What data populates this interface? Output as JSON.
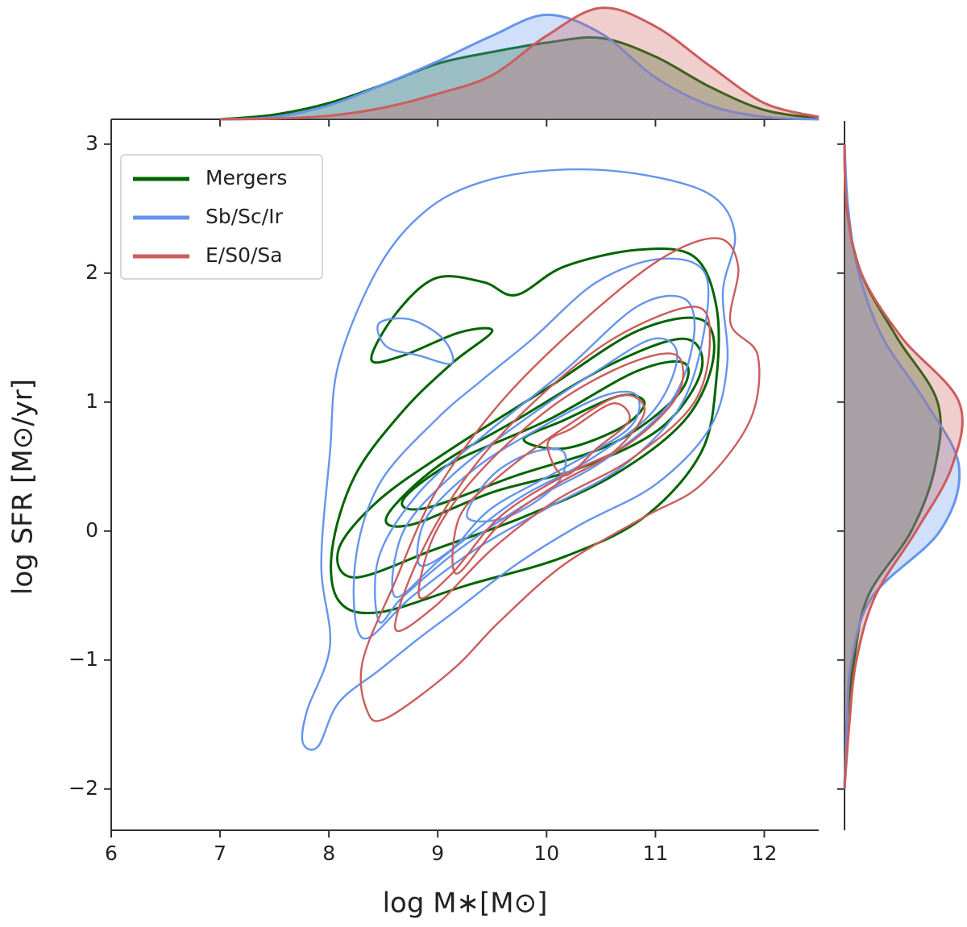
{
  "chart_data": [
    {
      "type": "contour",
      "xlabel": "log M∗[M⊙]",
      "ylabel": "log SFR [M⊙/yr]",
      "xlim": [
        6,
        12.5
      ],
      "ylim": [
        -2.32,
        3.18
      ],
      "xticks": [
        6,
        7,
        8,
        9,
        10,
        11,
        12
      ],
      "yticks": [
        {
          "value": -2,
          "label": "−2"
        },
        {
          "value": -1,
          "label": "−1"
        },
        0,
        1,
        2,
        3
      ],
      "legend": "upper left",
      "series": [
        {
          "name": "Mergers",
          "color": "#006400",
          "levels": [
            {
              "x": [
                8.39,
                8.61,
                8.98,
                9.42,
                9.72,
                10.16,
                10.83,
                11.35,
                11.56,
                11.56,
                11.42,
                10.9,
                10.16,
                9.27,
                8.46,
                8.09,
                8.03,
                8.24,
                8.68,
                9.13,
                9.5,
                9.2,
                8.68
              ],
              "y": [
                1.33,
                1.68,
                1.96,
                1.93,
                1.83,
                2.05,
                2.18,
                2.13,
                1.74,
                1.18,
                0.61,
                0.11,
                -0.2,
                -0.42,
                -0.63,
                -0.54,
                -0.14,
                0.43,
                0.93,
                1.3,
                1.55,
                1.54,
                1.36
              ]
            },
            {
              "x": [
                8.09,
                8.46,
                9.13,
                10.01,
                10.83,
                11.42,
                11.53,
                11.27,
                10.61,
                9.79,
                8.98,
                8.24
              ],
              "y": [
                -0.14,
                0.24,
                0.64,
                1.11,
                1.55,
                1.64,
                1.33,
                0.86,
                0.43,
                0.11,
                -0.14,
                -0.36
              ]
            },
            {
              "x": [
                8.53,
                8.98,
                9.72,
                10.61,
                11.27,
                11.42,
                11.05,
                10.31,
                9.5,
                8.76
              ],
              "y": [
                0.11,
                0.49,
                0.86,
                1.3,
                1.49,
                1.24,
                0.8,
                0.49,
                0.3,
                0.05
              ]
            },
            {
              "x": [
                8.68,
                9.13,
                10.01,
                10.83,
                11.27,
                11.2,
                10.61,
                9.72,
                8.9
              ],
              "y": [
                0.24,
                0.53,
                0.86,
                1.24,
                1.3,
                1.05,
                0.68,
                0.43,
                0.18
              ]
            },
            {
              "x": [
                9.79,
                10.16,
                10.68,
                10.9,
                10.68,
                10.16
              ],
              "y": [
                0.71,
                0.86,
                1.05,
                0.99,
                0.8,
                0.64
              ]
            }
          ]
        },
        {
          "name": "Sb/Sc/Ir",
          "color": "#6495ed",
          "levels": [
            {
              "x": [
                7.76,
                7.8,
                8.01,
                7.93,
                8.01,
                8.09,
                8.46,
                8.9,
                9.42,
                10.09,
                10.83,
                11.5,
                11.73,
                11.62,
                11.66,
                11.5,
                11.0,
                10.31,
                9.72,
                9.13,
                8.83,
                8.46,
                8.09,
                7.9
              ],
              "y": [
                -1.64,
                -1.39,
                -0.89,
                -0.26,
                0.61,
                1.3,
                2.05,
                2.49,
                2.71,
                2.8,
                2.77,
                2.61,
                2.3,
                1.86,
                1.3,
                0.8,
                0.36,
                0.05,
                -0.26,
                -0.64,
                -0.83,
                -1.08,
                -1.33,
                -1.67
              ]
            },
            {
              "x": [
                8.31,
                8.24,
                8.46,
                8.98,
                9.42,
                9.87,
                10.46,
                11.05,
                11.46,
                11.42,
                11.2,
                10.68,
                10.01,
                9.35,
                8.76
              ],
              "y": [
                -0.83,
                -0.26,
                0.36,
                0.86,
                1.18,
                1.49,
                1.93,
                2.11,
                1.99,
                1.43,
                0.93,
                0.49,
                0.18,
                -0.14,
                -0.51
              ]
            },
            {
              "x": [
                8.46,
                8.46,
                8.83,
                9.42,
                10.16,
                10.83,
                11.27,
                11.35,
                11.13,
                10.53,
                9.87,
                9.2,
                8.68
              ],
              "y": [
                -0.7,
                -0.2,
                0.3,
                0.74,
                1.24,
                1.74,
                1.8,
                1.49,
                0.99,
                0.55,
                0.24,
                -0.14,
                -0.51
              ]
            },
            {
              "x": [
                8.61,
                8.68,
                9.13,
                9.79,
                10.46,
                10.98,
                11.2,
                10.98,
                10.39,
                9.72,
                9.05
              ],
              "y": [
                -0.51,
                -0.01,
                0.43,
                0.86,
                1.24,
                1.49,
                1.36,
                0.93,
                0.55,
                0.24,
                -0.2
              ]
            },
            {
              "x": [
                8.83,
                8.9,
                9.35,
                9.94,
                10.53,
                10.83,
                10.76,
                10.16,
                9.5,
                9.13
              ],
              "y": [
                -0.26,
                0.11,
                0.49,
                0.8,
                1.05,
                1.05,
                0.8,
                0.49,
                0.18,
                -0.14
              ]
            },
            {
              "x": [
                9.27,
                9.5,
                9.87,
                10.16,
                10.09,
                9.64
              ],
              "y": [
                0.11,
                0.43,
                0.61,
                0.61,
                0.36,
                0.11
              ]
            },
            {
              "x": [
                8.46,
                8.75,
                9.05,
                9.13,
                8.83,
                8.53
              ],
              "y": [
                1.61,
                1.64,
                1.49,
                1.3,
                1.36,
                1.43
              ]
            }
          ]
        },
        {
          "name": "E/S0/Sa",
          "color": "#cd5c5c",
          "levels": [
            {
              "x": [
                8.35,
                8.31,
                8.61,
                8.98,
                9.57,
                10.31,
                11.05,
                11.57,
                11.76,
                11.69,
                11.94,
                11.87,
                11.42,
                10.9,
                10.16,
                9.57,
                9.13,
                8.53
              ],
              "y": [
                -1.39,
                -1.01,
                -0.39,
                0.3,
                0.99,
                1.61,
                2.11,
                2.27,
                2.05,
                1.61,
                1.36,
                0.86,
                0.36,
                0.11,
                -0.26,
                -0.7,
                -1.08,
                -1.45
              ]
            },
            {
              "x": [
                8.61,
                8.83,
                9.27,
                9.87,
                10.61,
                11.35,
                11.5,
                11.35,
                10.76,
                10.09,
                9.5,
                8.98
              ],
              "y": [
                -0.76,
                -0.2,
                0.43,
                0.99,
                1.49,
                1.74,
                1.49,
                0.99,
                0.55,
                0.24,
                -0.14,
                -0.58
              ]
            },
            {
              "x": [
                8.83,
                8.98,
                9.42,
                10.09,
                10.76,
                11.2,
                11.2,
                10.76,
                10.16,
                9.57,
                9.13
              ],
              "y": [
                -0.51,
                -0.01,
                0.49,
                0.99,
                1.3,
                1.36,
                1.05,
                0.68,
                0.43,
                0.11,
                -0.33
              ]
            },
            {
              "x": [
                9.17,
                9.2,
                9.57,
                10.16,
                10.68,
                10.9,
                10.61,
                10.09,
                9.57
              ],
              "y": [
                -0.33,
                0.11,
                0.43,
                0.8,
                1.05,
                0.93,
                0.61,
                0.36,
                0.05
              ]
            },
            {
              "x": [
                10.01,
                10.24,
                10.61,
                10.76,
                10.46,
                10.16
              ],
              "y": [
                0.68,
                0.8,
                0.99,
                0.86,
                0.64,
                0.43
              ]
            }
          ]
        }
      ]
    },
    {
      "type": "density",
      "orientation": "vertical",
      "ylim": [
        0,
        0.5
      ],
      "x": [
        7,
        7.5,
        8,
        8.5,
        9,
        9.5,
        10,
        10.5,
        11,
        11.5,
        12,
        12.5
      ],
      "series": [
        {
          "color": "#006400",
          "values": [
            0,
            0.02,
            0.07,
            0.15,
            0.24,
            0.29,
            0.33,
            0.35,
            0.27,
            0.14,
            0.04,
            0.005
          ]
        },
        {
          "color": "#6495ed",
          "values": [
            0,
            0.01,
            0.06,
            0.15,
            0.25,
            0.36,
            0.45,
            0.37,
            0.18,
            0.06,
            0.01,
            0
          ]
        },
        {
          "color": "#cd5c5c",
          "values": [
            0,
            0.003,
            0.015,
            0.05,
            0.11,
            0.19,
            0.36,
            0.48,
            0.4,
            0.23,
            0.07,
            0.01
          ]
        }
      ]
    },
    {
      "type": "density",
      "orientation": "horizontal",
      "xlim": [
        0,
        0.5
      ],
      "x": [
        -2,
        -1.5,
        -1,
        -0.5,
        0,
        0.5,
        1,
        1.5,
        2,
        2.5,
        3
      ],
      "series": [
        {
          "color": "#006400",
          "values": [
            0,
            0.01,
            0.04,
            0.1,
            0.28,
            0.38,
            0.39,
            0.22,
            0.07,
            0.01,
            0
          ]
        },
        {
          "color": "#6495ed",
          "values": [
            0,
            0.01,
            0.03,
            0.12,
            0.4,
            0.48,
            0.34,
            0.16,
            0.06,
            0.015,
            0
          ]
        },
        {
          "color": "#cd5c5c",
          "values": [
            0,
            0.02,
            0.05,
            0.13,
            0.3,
            0.45,
            0.48,
            0.24,
            0.07,
            0.01,
            0
          ]
        }
      ]
    }
  ]
}
